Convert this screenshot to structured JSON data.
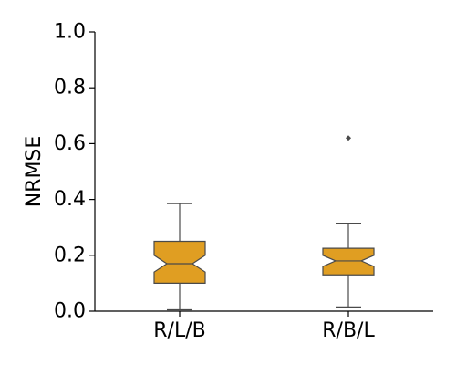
{
  "chart_data": {
    "type": "boxplot",
    "title": "",
    "xlabel": "",
    "ylabel": "NRMSE",
    "ylim": [
      0.0,
      1.0
    ],
    "yticks": [
      "0.0",
      "0.2",
      "0.4",
      "0.6",
      "0.8",
      "1.0"
    ],
    "notched": true,
    "grid": false,
    "categories": [
      "R/L/B",
      "R/B/L"
    ],
    "boxes": [
      {
        "whisker_low": 0.005,
        "q1": 0.1,
        "median": 0.17,
        "q3": 0.25,
        "whisker_high": 0.385,
        "notch_low": 0.14,
        "notch_high": 0.2,
        "outliers": []
      },
      {
        "whisker_low": 0.015,
        "q1": 0.13,
        "median": 0.18,
        "q3": 0.225,
        "whisker_high": 0.315,
        "notch_low": 0.16,
        "notch_high": 0.2,
        "outliers": [
          0.62
        ]
      }
    ],
    "colors": {
      "box_fill": "#E09E22",
      "box_edge": "#4A4A4A",
      "axis": "#000000"
    }
  }
}
